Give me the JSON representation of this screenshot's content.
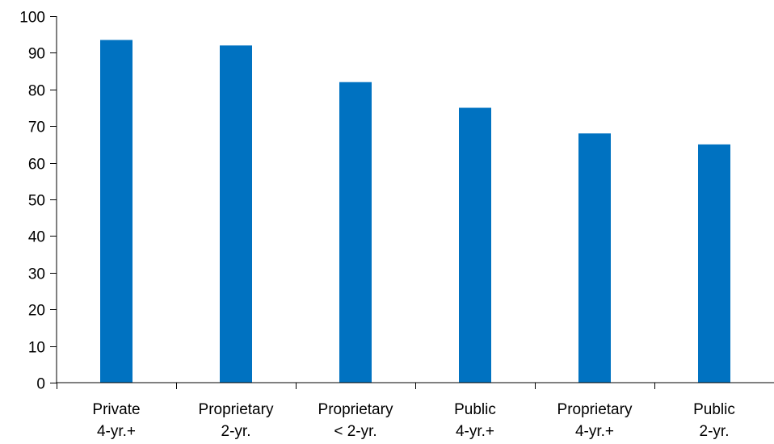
{
  "chart_data": {
    "type": "bar",
    "categories": [
      [
        "Private",
        "4-yr.+"
      ],
      [
        "Proprietary",
        "2-yr."
      ],
      [
        "Proprietary",
        "< 2-yr."
      ],
      [
        "Public",
        "4-yr.+"
      ],
      [
        "Proprietary",
        "4-yr.+"
      ],
      [
        "Public",
        "2-yr."
      ]
    ],
    "values": [
      93.5,
      92,
      82,
      75,
      68,
      65
    ],
    "ylim": [
      0,
      100
    ],
    "yticks": [
      0,
      10,
      20,
      30,
      40,
      50,
      60,
      70,
      80,
      90,
      100
    ],
    "xlabel": "",
    "ylabel": "",
    "grid": false,
    "bar_color": "#0072C1"
  }
}
